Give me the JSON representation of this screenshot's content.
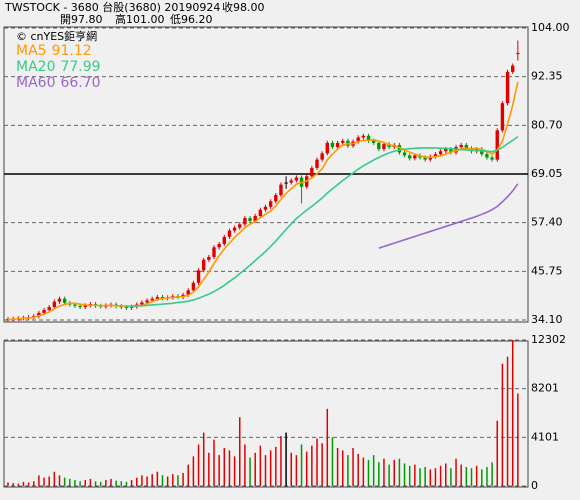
{
  "header": {
    "title": "TWSTOCK - 3680  台股(3680) 20190924",
    "close_label": "收98.00",
    "open_label": "開97.80",
    "high_label": "高101.00",
    "low_label": "低96.20",
    "watermark": "© cnYES鉅亨網"
  },
  "chart_data": [
    {
      "type": "candlestick",
      "open": [
        34.2,
        34.3,
        34.4,
        34.5,
        34.6,
        34.8,
        35.0,
        35.8,
        36.5,
        37.2,
        38.5,
        39.2,
        38.2,
        37.8,
        37.5,
        37.2,
        37.6,
        37.9,
        37.5,
        37.3,
        37.6,
        37.8,
        37.4,
        37.2,
        37.0,
        37.3,
        37.8,
        38.3,
        38.8,
        39.2,
        39.6,
        39.3,
        39.5,
        39.8,
        39.6,
        40.1,
        41.2,
        43.0,
        46.0,
        48.5,
        49.2,
        51.5,
        52.3,
        54.0,
        55.5,
        56.2,
        57.0,
        58.5,
        57.8,
        59.0,
        60.5,
        61.2,
        62.5,
        64.0,
        67.0,
        67.0,
        67.5,
        68.2,
        66.0,
        68.5,
        70.5,
        72.5,
        74.0,
        76.5,
        75.5,
        76.5,
        77.0,
        75.8,
        76.8,
        77.8,
        78.2,
        77.0,
        76.5,
        75.0,
        76.2,
        75.5,
        76.0,
        74.2,
        73.5,
        72.8,
        73.5,
        73.0,
        72.5,
        73.2,
        73.8,
        74.5,
        75.0,
        74.2,
        75.5,
        76.0,
        75.2,
        74.5,
        75.0,
        73.8,
        73.0,
        72.5,
        79.5,
        86.0,
        93.5,
        97.8
      ],
      "high": [
        34.8,
        34.9,
        35.0,
        35.1,
        35.3,
        35.5,
        36.3,
        37.0,
        37.7,
        39.0,
        39.7,
        39.7,
        38.7,
        38.3,
        38.0,
        38.1,
        38.4,
        38.4,
        38.0,
        38.1,
        38.3,
        38.3,
        37.9,
        37.7,
        37.8,
        38.3,
        38.8,
        39.3,
        39.7,
        40.1,
        40.1,
        40.0,
        40.3,
        40.3,
        40.6,
        41.7,
        43.5,
        46.5,
        49.0,
        49.7,
        52.0,
        52.8,
        54.5,
        56.0,
        56.7,
        57.5,
        59.0,
        59.0,
        59.5,
        61.0,
        61.7,
        63.0,
        64.5,
        67.0,
        68.5,
        68.0,
        68.7,
        68.7,
        69.0,
        71.0,
        73.0,
        74.5,
        77.0,
        77.0,
        77.0,
        77.5,
        77.5,
        77.3,
        78.3,
        78.7,
        78.7,
        77.5,
        77.0,
        76.7,
        76.7,
        76.5,
        76.5,
        74.7,
        74.0,
        74.0,
        74.0,
        73.5,
        73.7,
        74.3,
        75.0,
        75.5,
        75.5,
        76.0,
        76.5,
        76.5,
        75.7,
        75.5,
        75.5,
        74.3,
        73.5,
        80.0,
        86.5,
        94.0,
        95.5,
        101.0
      ],
      "low": [
        33.7,
        33.8,
        33.9,
        34.0,
        34.1,
        34.3,
        34.5,
        35.3,
        36.0,
        36.7,
        38.0,
        37.7,
        37.3,
        37.0,
        36.7,
        36.7,
        37.1,
        37.0,
        36.8,
        36.8,
        37.1,
        36.9,
        36.7,
        36.5,
        36.5,
        36.8,
        37.3,
        37.8,
        38.3,
        38.7,
        38.8,
        38.8,
        39.0,
        39.1,
        39.1,
        39.6,
        40.7,
        42.5,
        45.5,
        48.0,
        48.7,
        51.0,
        51.8,
        53.5,
        55.0,
        55.7,
        56.5,
        57.3,
        57.3,
        58.5,
        60.0,
        60.7,
        62.0,
        63.5,
        65.5,
        66.5,
        67.0,
        62.0,
        65.5,
        68.0,
        70.0,
        72.0,
        73.5,
        75.0,
        75.0,
        76.0,
        75.3,
        75.3,
        76.3,
        77.3,
        76.5,
        76.0,
        74.5,
        74.5,
        75.0,
        75.0,
        73.7,
        73.0,
        72.3,
        72.3,
        72.5,
        72.0,
        72.0,
        72.7,
        73.3,
        74.0,
        73.7,
        73.7,
        75.0,
        74.7,
        74.0,
        74.0,
        73.3,
        72.5,
        72.0,
        72.0,
        79.0,
        85.5,
        93.0,
        96.2
      ],
      "close": [
        34.3,
        34.4,
        34.5,
        34.6,
        34.8,
        35.0,
        35.8,
        36.5,
        37.2,
        38.5,
        39.2,
        38.2,
        37.8,
        37.5,
        37.2,
        37.6,
        37.9,
        37.5,
        37.3,
        37.6,
        37.8,
        37.4,
        37.2,
        37.0,
        37.3,
        37.8,
        38.3,
        38.8,
        39.2,
        39.6,
        39.3,
        39.5,
        39.8,
        39.6,
        40.1,
        41.2,
        43.0,
        46.0,
        48.5,
        49.2,
        51.5,
        52.3,
        54.0,
        55.5,
        56.2,
        57.0,
        58.5,
        57.8,
        59.0,
        60.5,
        61.2,
        62.5,
        64.0,
        66.5,
        67.0,
        67.5,
        68.2,
        66.0,
        68.5,
        70.5,
        72.5,
        74.0,
        76.5,
        75.5,
        76.5,
        77.0,
        75.8,
        76.8,
        77.8,
        78.2,
        77.0,
        76.5,
        75.0,
        76.2,
        75.5,
        76.0,
        74.2,
        73.5,
        72.8,
        73.5,
        73.0,
        72.5,
        73.2,
        73.8,
        74.5,
        75.0,
        74.2,
        75.5,
        76.0,
        75.2,
        74.5,
        75.0,
        73.8,
        73.0,
        72.5,
        79.5,
        86.0,
        93.5,
        95.0,
        98.0
      ],
      "up_color": "#e00000",
      "down_color": "#009900",
      "flat_color": "#000000",
      "series": [
        {
          "name": "MA5",
          "legend_value": "91.12",
          "color": "#ff9900",
          "values": [
            34.2,
            34.3,
            34.4,
            34.5,
            34.6,
            34.7,
            35.1,
            35.5,
            36.0,
            36.8,
            37.4,
            37.8,
            38.1,
            38.1,
            37.9,
            37.7,
            37.6,
            37.6,
            37.5,
            37.6,
            37.6,
            37.5,
            37.5,
            37.4,
            37.3,
            37.4,
            37.6,
            38.0,
            38.5,
            39.0,
            39.2,
            39.4,
            39.5,
            39.6,
            39.7,
            40.0,
            40.8,
            42.0,
            43.8,
            45.6,
            47.6,
            49.5,
            51.1,
            52.5,
            53.9,
            55.0,
            56.2,
            57.0,
            57.7,
            58.6,
            59.4,
            60.2,
            61.4,
            63.0,
            64.4,
            65.5,
            66.6,
            67.0,
            67.4,
            68.1,
            69.1,
            70.3,
            72.4,
            73.8,
            75.0,
            75.9,
            76.3,
            76.3,
            76.8,
            77.1,
            77.1,
            77.3,
            76.9,
            76.6,
            76.0,
            75.8,
            75.4,
            74.8,
            74.3,
            73.8,
            73.4,
            73.1,
            73.0,
            73.2,
            73.4,
            73.8,
            74.3,
            74.6,
            75.0,
            75.2,
            75.1,
            75.2,
            74.9,
            74.5,
            73.8,
            74.8,
            76.9,
            81.0,
            85.5,
            91.12
          ]
        },
        {
          "name": "MA20",
          "legend_value": "77.99",
          "color": "#33cc88",
          "values": [
            null,
            null,
            null,
            null,
            null,
            null,
            null,
            null,
            null,
            null,
            null,
            null,
            null,
            null,
            null,
            null,
            null,
            null,
            null,
            null,
            null,
            null,
            null,
            37.4,
            37.4,
            37.5,
            37.5,
            37.6,
            37.7,
            37.8,
            37.9,
            38.0,
            38.1,
            38.3,
            38.4,
            38.6,
            38.9,
            39.3,
            39.8,
            40.3,
            40.9,
            41.6,
            42.4,
            43.3,
            44.2,
            45.2,
            46.2,
            47.2,
            48.3,
            49.4,
            50.5,
            51.7,
            53.0,
            54.4,
            55.8,
            57.1,
            58.4,
            59.4,
            60.4,
            61.3,
            62.3,
            63.3,
            64.5,
            65.5,
            66.5,
            67.5,
            68.4,
            69.3,
            70.2,
            71.0,
            71.7,
            72.4,
            73.0,
            73.6,
            74.1,
            74.5,
            74.8,
            75.0,
            75.1,
            75.2,
            75.3,
            75.3,
            75.3,
            75.3,
            75.2,
            75.2,
            75.1,
            75.0,
            74.9,
            74.8,
            74.7,
            74.7,
            74.6,
            74.5,
            74.4,
            74.8,
            75.4,
            76.3,
            77.1,
            77.99
          ]
        },
        {
          "name": "MA60",
          "legend_value": "66.70",
          "color": "#9966cc",
          "values": [
            null,
            null,
            null,
            null,
            null,
            null,
            null,
            null,
            null,
            null,
            null,
            null,
            null,
            null,
            null,
            null,
            null,
            null,
            null,
            null,
            null,
            null,
            null,
            null,
            null,
            null,
            null,
            null,
            null,
            null,
            null,
            null,
            null,
            null,
            null,
            null,
            null,
            null,
            null,
            null,
            null,
            null,
            null,
            null,
            null,
            null,
            null,
            null,
            null,
            null,
            null,
            null,
            null,
            null,
            null,
            null,
            null,
            null,
            null,
            null,
            null,
            null,
            null,
            null,
            null,
            null,
            null,
            null,
            null,
            null,
            null,
            null,
            51.3,
            51.7,
            52.1,
            52.5,
            52.9,
            53.3,
            53.7,
            54.1,
            54.5,
            54.9,
            55.3,
            55.7,
            56.1,
            56.5,
            56.9,
            57.3,
            57.7,
            58.1,
            58.5,
            58.9,
            59.4,
            59.9,
            60.5,
            61.3,
            62.4,
            63.6,
            65.0,
            66.7
          ]
        }
      ],
      "ylim": [
        34.1,
        104
      ],
      "yticks": [
        {
          "value": 104,
          "label": "104.00"
        },
        92.35,
        {
          "value": 80.7,
          "label": "80.70"
        },
        69.05,
        {
          "value": 57.4,
          "label": "57.40"
        },
        45.75,
        {
          "value": 34.1,
          "label": "34.10"
        }
      ],
      "grid": true
    },
    {
      "type": "bar",
      "values": [
        300,
        250,
        200,
        350,
        300,
        400,
        900,
        700,
        800,
        1200,
        900,
        700,
        600,
        500,
        400,
        500,
        600,
        400,
        350,
        500,
        600,
        450,
        400,
        350,
        500,
        700,
        900,
        800,
        1000,
        1200,
        900,
        800,
        1000,
        900,
        1100,
        1800,
        2500,
        3500,
        4500,
        2800,
        3900,
        2600,
        3200,
        3000,
        2500,
        5800,
        3500,
        2400,
        2800,
        3400,
        2600,
        3000,
        3300,
        4200,
        4500,
        2800,
        2600,
        3500,
        2900,
        3400,
        4000,
        3600,
        6500,
        4100,
        3200,
        3000,
        2600,
        3200,
        2700,
        2400,
        2200,
        2600,
        2000,
        2300,
        1800,
        2200,
        2300,
        1900,
        1700,
        1800,
        1500,
        1600,
        1400,
        1500,
        1700,
        1900,
        1500,
        2300,
        1800,
        1600,
        1500,
        1700,
        1400,
        1600,
        2000,
        5500,
        10300,
        10900,
        12302,
        7800
      ],
      "ylim": [
        0,
        12302
      ],
      "yticks": [
        12302,
        8201,
        4101,
        0
      ],
      "grid": true
    }
  ]
}
